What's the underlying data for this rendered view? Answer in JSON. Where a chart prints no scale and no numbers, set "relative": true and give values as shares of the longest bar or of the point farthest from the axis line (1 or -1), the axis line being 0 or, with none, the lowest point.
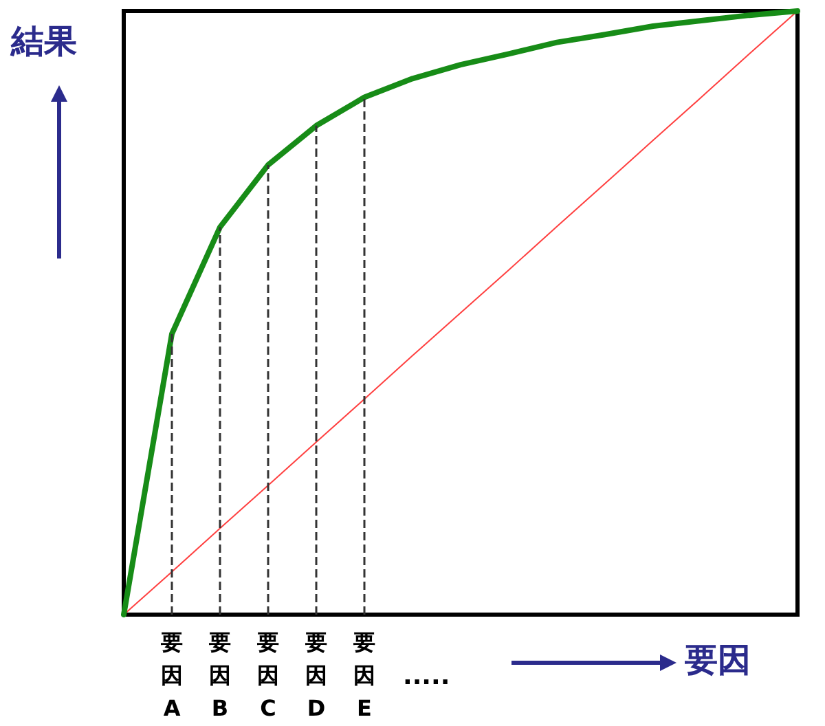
{
  "chart_data": {
    "type": "line",
    "relative": true,
    "xlabel": "要因",
    "ylabel": "結果",
    "tick_labels": "x",
    "grid": false,
    "categories": [
      null,
      "要因A",
      "要因B",
      "要因C",
      "要因D",
      "要因E",
      null,
      null,
      null,
      null,
      null,
      null,
      null,
      null,
      null
    ],
    "series": [
      {
        "color": "#178c17",
        "values": [
          0,
          0.465,
          0.642,
          0.745,
          0.81,
          0.857,
          0.888,
          0.911,
          0.929,
          0.948,
          0.961,
          0.975,
          0.984,
          0.993,
          1
        ]
      },
      {
        "color": "#ff4040",
        "values": [
          0,
          0.071,
          0.143,
          0.214,
          0.286,
          0.357,
          0.429,
          0.5,
          0.571,
          0.643,
          0.714,
          0.786,
          0.857,
          0.929,
          1
        ]
      }
    ],
    "ref_lines": [
      {
        "axis": "x",
        "value": "要因A",
        "line_style": "dashed",
        "color": "#333333"
      },
      {
        "axis": "x",
        "value": "要因B",
        "line_style": "dashed",
        "color": "#333333"
      },
      {
        "axis": "x",
        "value": "要因C",
        "line_style": "dashed",
        "color": "#333333"
      },
      {
        "axis": "x",
        "value": "要因D",
        "line_style": "dashed",
        "color": "#333333"
      },
      {
        "axis": "x",
        "value": "要因E",
        "line_style": "dashed",
        "color": "#333333"
      }
    ],
    "annotations": [
      "....."
    ]
  }
}
